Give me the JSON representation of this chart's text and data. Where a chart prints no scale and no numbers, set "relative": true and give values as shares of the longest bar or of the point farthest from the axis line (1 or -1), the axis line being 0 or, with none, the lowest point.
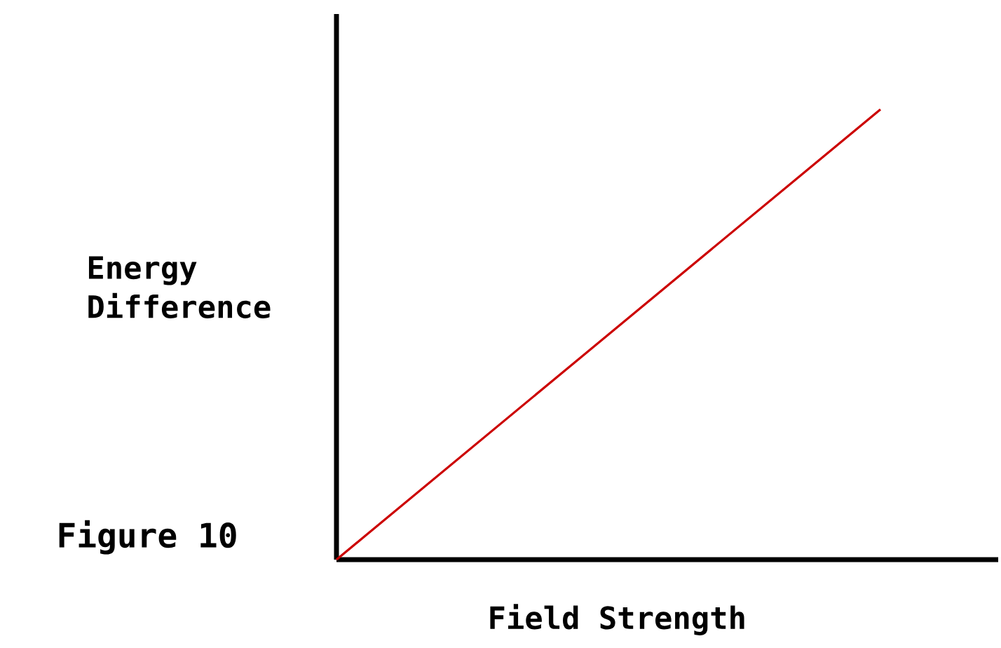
{
  "chart_data": {
    "type": "line",
    "relative": true,
    "categories": [
      null,
      null
    ],
    "values": [
      0,
      1
    ],
    "color": "#cc0000",
    "xlabel": "Field Strength",
    "ylabel": "Energy Difference",
    "annotations": [
      "Figure 10"
    ]
  }
}
